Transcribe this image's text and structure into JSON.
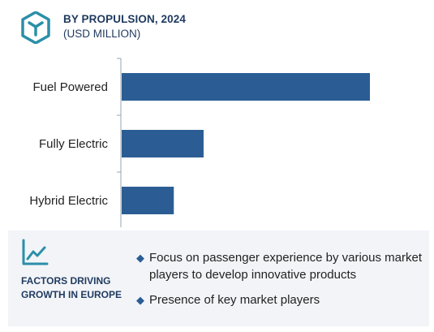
{
  "header": {
    "title": "BY PROPULSION, 2024",
    "subtitle": "(USD MILLION)",
    "logo_icon": "cube-logo-icon",
    "accent_color": "#2b5d94"
  },
  "chart_data": {
    "type": "bar",
    "orientation": "horizontal",
    "title": "BY PROPULSION, 2024",
    "subtitle": "(USD MILLION)",
    "categories": [
      "Fuel Powered",
      "Fully Electric",
      "Hybrid Electric"
    ],
    "values": [
      100,
      33,
      21
    ],
    "bar_color": "#2b5d94",
    "xlabel": "",
    "ylabel": "",
    "grid": false,
    "legend": "none"
  },
  "footer": {
    "icon": "line-chart-icon",
    "factors_title": "FACTORS DRIVING GROWTH IN EUROPE",
    "bullet": "◆",
    "factors": [
      "Focus on passenger experience by various market players to develop innovative products",
      "Presence of key market players"
    ]
  }
}
